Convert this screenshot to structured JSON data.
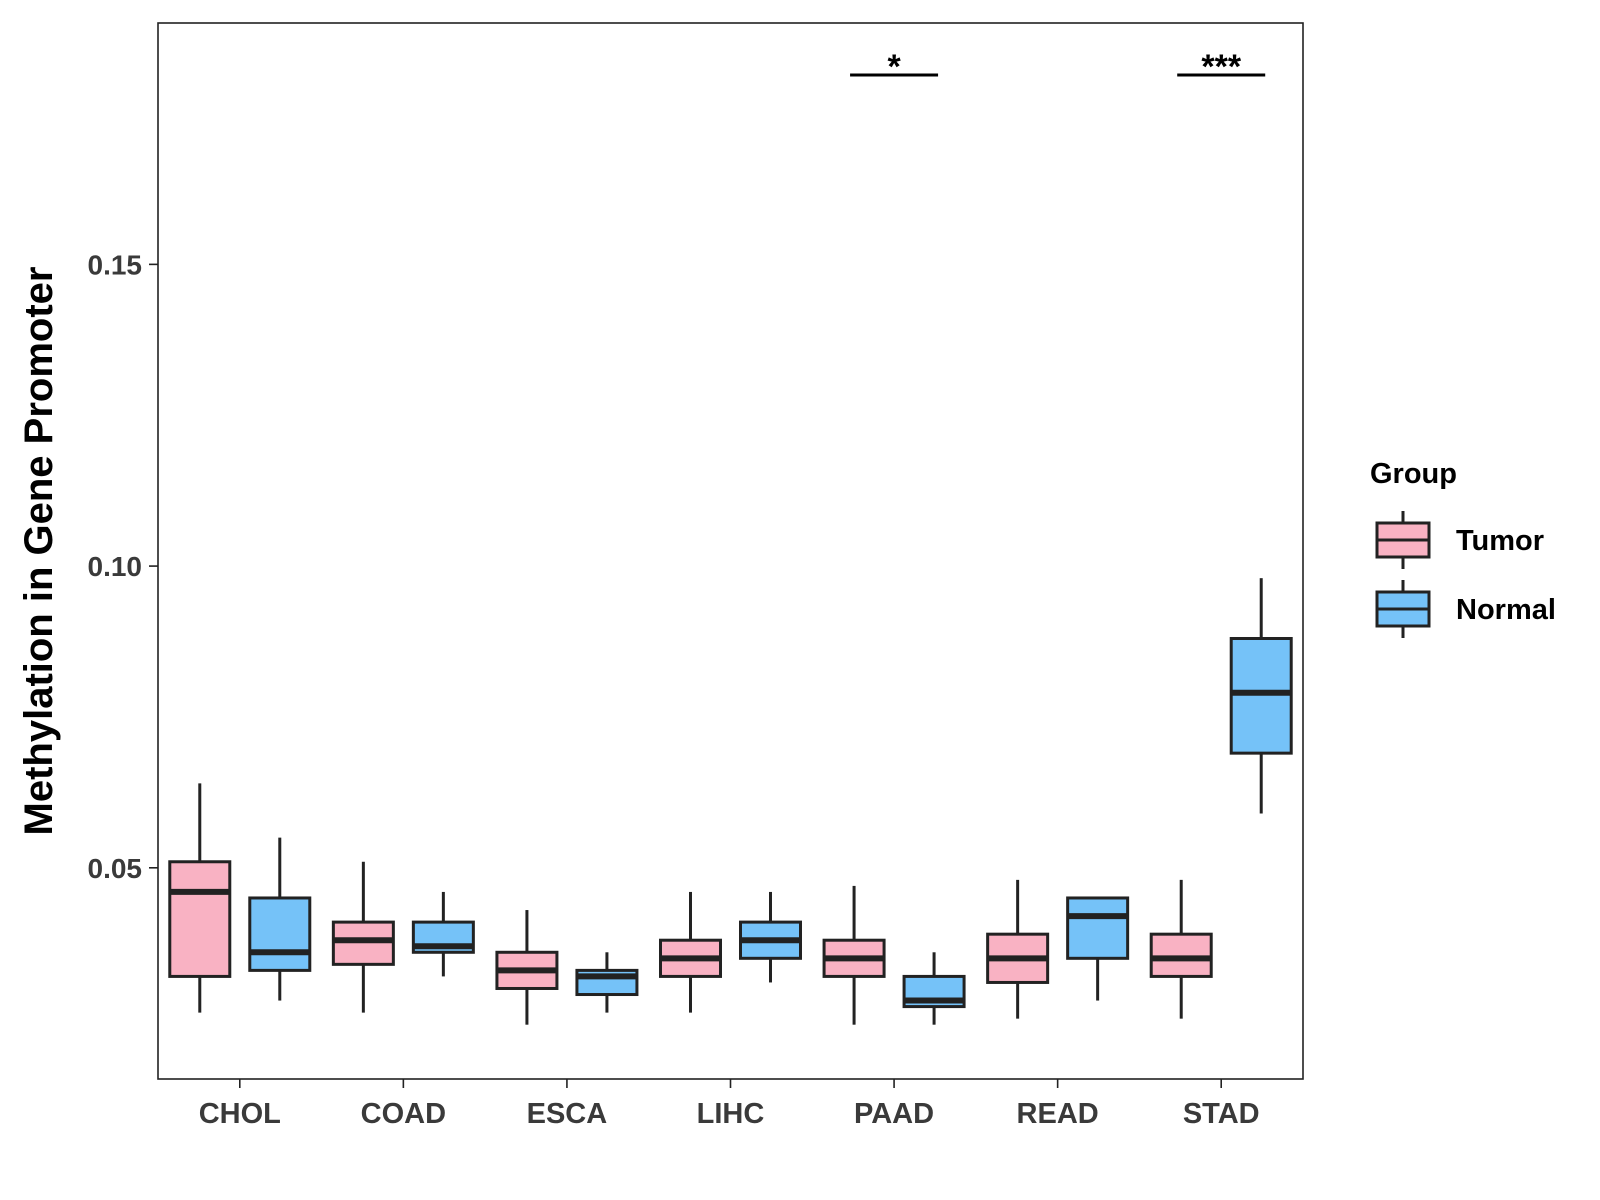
{
  "chart_data": {
    "type": "box",
    "title": "",
    "xlabel": "",
    "ylabel": "Methylation in Gene Promoter",
    "ylim": [
      0.015,
      0.19
    ],
    "yticks": [
      0.05,
      0.1,
      0.15
    ],
    "ytick_labels": [
      "0.05",
      "0.10",
      "0.15"
    ],
    "categories": [
      "CHOL",
      "COAD",
      "ESCA",
      "LIHC",
      "PAAD",
      "READ",
      "STAD"
    ],
    "grid": false,
    "legend": {
      "title": "Group",
      "position": "right",
      "entries": [
        {
          "name": "Tumor",
          "color": "#F9B2C3"
        },
        {
          "name": "Normal",
          "color": "#75C2F8"
        }
      ]
    },
    "series": [
      {
        "name": "Tumor",
        "color": "#F9B2C3",
        "boxes": [
          {
            "category": "CHOL",
            "whisker_low": 0.026,
            "q1": 0.032,
            "median": 0.046,
            "q3": 0.051,
            "whisker_high": 0.064
          },
          {
            "category": "COAD",
            "whisker_low": 0.026,
            "q1": 0.034,
            "median": 0.038,
            "q3": 0.041,
            "whisker_high": 0.051
          },
          {
            "category": "ESCA",
            "whisker_low": 0.024,
            "q1": 0.03,
            "median": 0.033,
            "q3": 0.036,
            "whisker_high": 0.043
          },
          {
            "category": "LIHC",
            "whisker_low": 0.026,
            "q1": 0.032,
            "median": 0.035,
            "q3": 0.038,
            "whisker_high": 0.046
          },
          {
            "category": "PAAD",
            "whisker_low": 0.024,
            "q1": 0.032,
            "median": 0.035,
            "q3": 0.038,
            "whisker_high": 0.047
          },
          {
            "category": "READ",
            "whisker_low": 0.025,
            "q1": 0.031,
            "median": 0.035,
            "q3": 0.039,
            "whisker_high": 0.048
          },
          {
            "category": "STAD",
            "whisker_low": 0.025,
            "q1": 0.032,
            "median": 0.035,
            "q3": 0.039,
            "whisker_high": 0.048
          }
        ]
      },
      {
        "name": "Normal",
        "color": "#75C2F8",
        "boxes": [
          {
            "category": "CHOL",
            "whisker_low": 0.028,
            "q1": 0.033,
            "median": 0.036,
            "q3": 0.045,
            "whisker_high": 0.055
          },
          {
            "category": "COAD",
            "whisker_low": 0.032,
            "q1": 0.036,
            "median": 0.037,
            "q3": 0.041,
            "whisker_high": 0.046
          },
          {
            "category": "ESCA",
            "whisker_low": 0.026,
            "q1": 0.029,
            "median": 0.032,
            "q3": 0.033,
            "whisker_high": 0.036
          },
          {
            "category": "LIHC",
            "whisker_low": 0.031,
            "q1": 0.035,
            "median": 0.038,
            "q3": 0.041,
            "whisker_high": 0.046
          },
          {
            "category": "PAAD",
            "whisker_low": 0.024,
            "q1": 0.027,
            "median": 0.028,
            "q3": 0.032,
            "whisker_high": 0.036
          },
          {
            "category": "READ",
            "whisker_low": 0.028,
            "q1": 0.035,
            "median": 0.042,
            "q3": 0.045,
            "whisker_high": 0.045
          },
          {
            "category": "STAD",
            "whisker_low": 0.059,
            "q1": 0.069,
            "median": 0.079,
            "q3": 0.088,
            "whisker_high": 0.098
          }
        ]
      }
    ],
    "annotations": [
      {
        "category": "PAAD",
        "label": "*"
      },
      {
        "category": "STAD",
        "label": "***"
      }
    ]
  }
}
